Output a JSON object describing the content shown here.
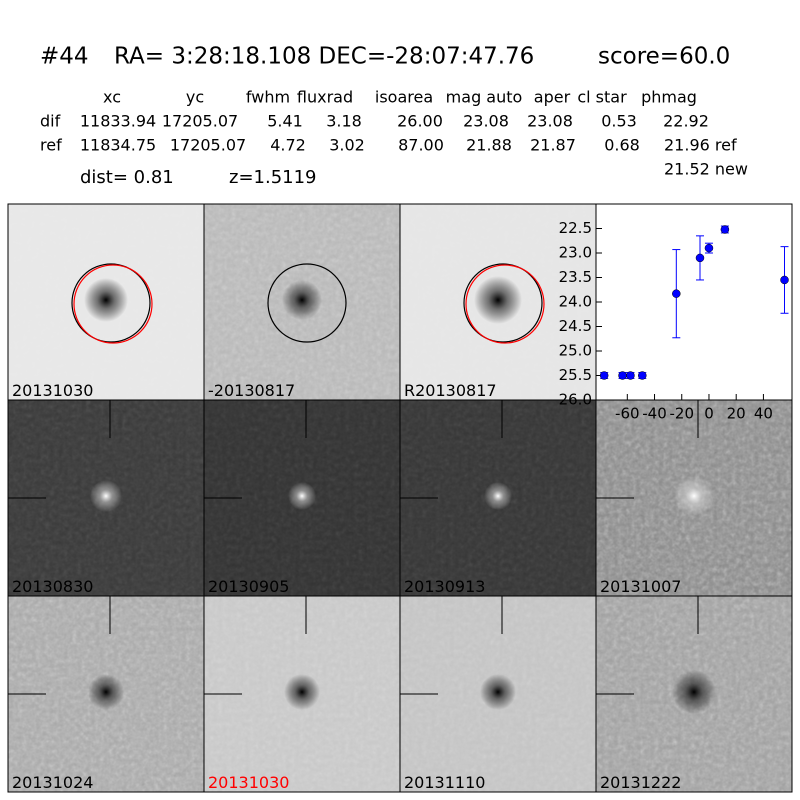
{
  "header": {
    "id": "#44",
    "coords": "RA= 3:28:18.108 DEC=-28:07:47.76",
    "score": "score=60.0"
  },
  "table": {
    "columns": [
      "xc",
      "yc",
      "fwhm",
      "fluxrad",
      "isoarea",
      "mag auto",
      "aper",
      "cl star",
      "phmag"
    ],
    "rows": [
      {
        "label": "dif",
        "values": [
          "11833.94",
          "17205.07",
          "5.41",
          "3.18",
          "26.00",
          "23.08",
          "23.08",
          "0.53",
          "22.92"
        ]
      },
      {
        "label": "ref",
        "values": [
          "11834.75",
          "17205.07",
          "4.72",
          "3.02",
          "87.00",
          "21.88",
          "21.87",
          "0.68",
          "21.96 ref"
        ]
      }
    ],
    "extra": "21.52 new"
  },
  "dist": "dist=  0.81",
  "redshift": "z=1.5119",
  "panels": [
    "20131030",
    "-20130817",
    "R20130817",
    "20130830",
    "20130905",
    "20130913",
    "20131007",
    "20131024",
    "20131030",
    "20131110",
    "20131222"
  ],
  "chart_data": {
    "type": "scatter",
    "x": [
      -77,
      -63.5,
      -57.7,
      -49,
      -24,
      -6.6,
      0,
      11.7,
      55.5
    ],
    "series": [
      {
        "color": "#0000ff",
        "values": [
          25.5,
          25.5,
          25.5,
          25.5,
          23.83,
          23.1,
          22.9,
          22.52,
          23.55
        ],
        "errors": [
          0.06,
          0.06,
          0.06,
          0.06,
          0.9,
          0.45,
          0.1,
          0.07,
          0.68
        ]
      }
    ],
    "xlim": [
      -83,
      61
    ],
    "ylim": [
      26.0,
      22.0
    ],
    "y_inverted": true,
    "xticks": [
      -60,
      -40,
      -20,
      0,
      20,
      40
    ],
    "yticks": [
      {
        "value": 22.5,
        "label": "22.5"
      },
      {
        "value": 23.0,
        "label": "23.0"
      },
      {
        "value": 23.5,
        "label": "23.5"
      },
      {
        "value": 24.0,
        "label": "24.0"
      },
      {
        "value": 24.5,
        "label": "24.5"
      },
      {
        "value": 25.0,
        "label": "25.0"
      },
      {
        "value": 25.5,
        "label": "25.5"
      },
      {
        "value": 26.0,
        "label": "26.0"
      }
    ]
  }
}
